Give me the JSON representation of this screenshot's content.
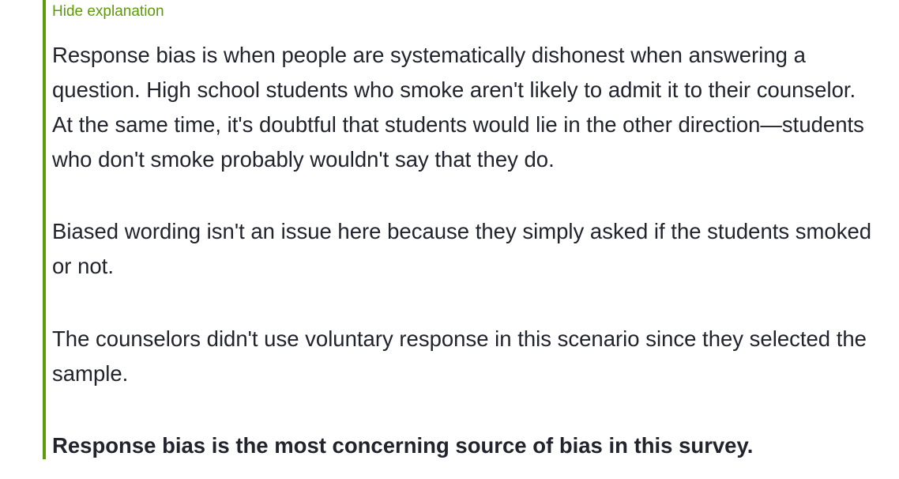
{
  "explanation": {
    "toggle_label": "Hide explanation",
    "paragraphs": [
      "Response bias is when people are systematically dishonest when answering a question. High school students who smoke aren't likely to admit it to their counselor. At the same time, it's doubtful that students would lie in the other direction—students who don't smoke probably wouldn't say that they do.",
      "Biased wording isn't an issue here because they simply asked if the students smoked or not.",
      "The counselors didn't use voluntary response in this scenario since they selected the sample."
    ],
    "conclusion": "Response bias is the most concerning source of bias in this survey."
  },
  "colors": {
    "accent": "#5e9a0c",
    "text": "#21242c"
  }
}
